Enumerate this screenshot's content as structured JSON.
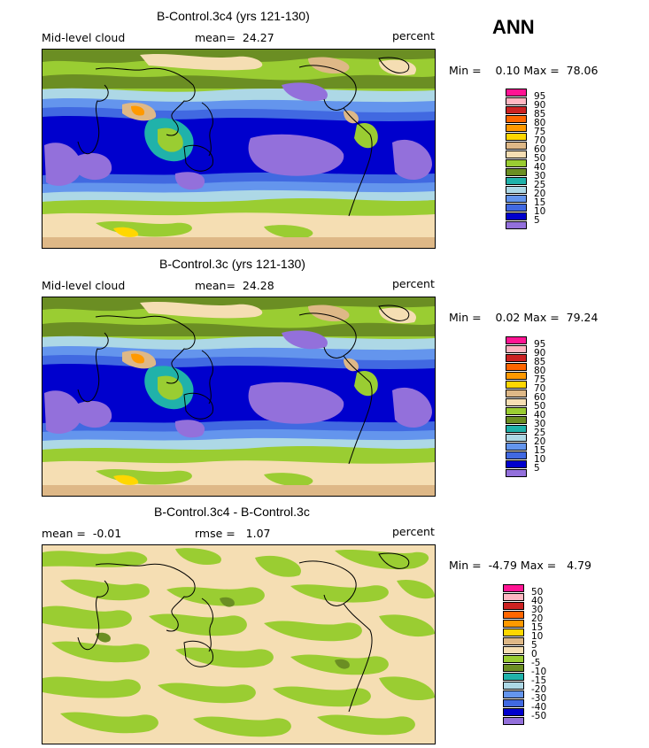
{
  "season": "ANN",
  "panels": [
    {
      "title": "B-Control.3c4 (yrs 121-130)",
      "field": "Mid-level cloud",
      "stat_label": "mean=",
      "stat_value": "24.27",
      "units": "percent",
      "min_label": "Min =",
      "min_value": "0.10",
      "max_label": "Max =",
      "max_value": "78.06",
      "legend_levels": [
        "95",
        "90",
        "85",
        "80",
        "75",
        "70",
        "60",
        "50",
        "40",
        "30",
        "25",
        "20",
        "15",
        "10",
        "5"
      ]
    },
    {
      "title": "B-Control.3c (yrs 121-130)",
      "field": "Mid-level cloud",
      "stat_label": "mean=",
      "stat_value": "24.28",
      "units": "percent",
      "min_label": "Min =",
      "min_value": "0.02",
      "max_label": "Max =",
      "max_value": "79.24",
      "legend_levels": [
        "95",
        "90",
        "85",
        "80",
        "75",
        "70",
        "60",
        "50",
        "40",
        "30",
        "25",
        "20",
        "15",
        "10",
        "5"
      ]
    },
    {
      "title": "B-Control.3c4 - B-Control.3c",
      "stat_label": "mean =",
      "stat_value": "-0.01",
      "rmse_label": "rmse =",
      "rmse_value": "1.07",
      "units": "percent",
      "min_label": "Min =",
      "min_value": "-4.79",
      "max_label": "Max =",
      "max_value": "4.79",
      "legend_levels": [
        "50",
        "40",
        "30",
        "20",
        "15",
        "10",
        "5",
        "0",
        "-5",
        "-10",
        "-15",
        "-20",
        "-30",
        "-40",
        "-50"
      ]
    }
  ],
  "colors": {
    "scale": [
      "#ff1493",
      "#ffb6c1",
      "#cc2222",
      "#ff6600",
      "#ff9900",
      "#ffd700",
      "#deb887",
      "#f5deb3",
      "#9acd32",
      "#6b8e23",
      "#20b2aa",
      "#add8e6",
      "#6495ed",
      "#4169e1",
      "#0000cd",
      "#9370db"
    ],
    "diff_scale": [
      "#ff1493",
      "#ffb6c1",
      "#cc2222",
      "#ff6600",
      "#ff9900",
      "#ffd700",
      "#deb887",
      "#f5deb3",
      "#9acd32",
      "#6b8e23",
      "#20b2aa",
      "#add8e6",
      "#6495ed",
      "#4169e1",
      "#0000cd",
      "#9370db"
    ]
  }
}
